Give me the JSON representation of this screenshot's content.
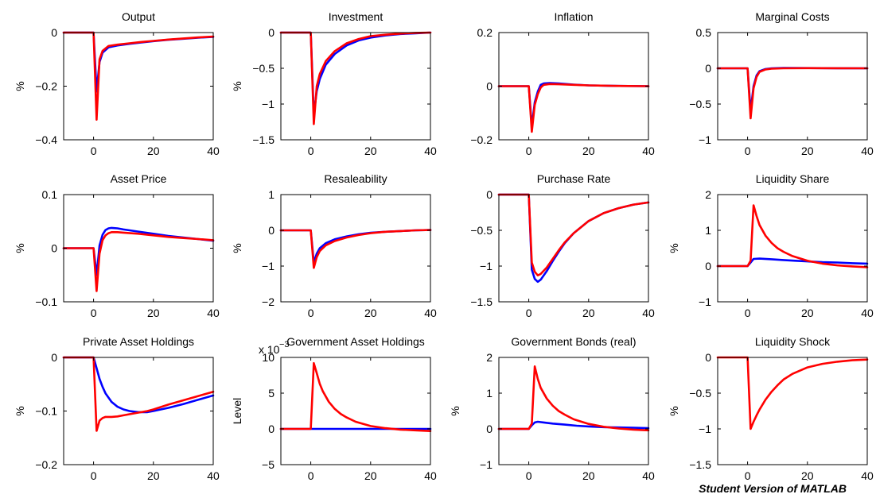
{
  "figure": {
    "watermark": "Student Version of MATLAB",
    "colors": {
      "series_blue": "#0000ff",
      "series_red": "#ff0000",
      "axes": "#000000",
      "background": "#ffffff"
    }
  },
  "chart_data": [
    {
      "type": "line",
      "title": "Output",
      "xlabel": "",
      "ylabel": "%",
      "xlim": [
        -10,
        40
      ],
      "ylim": [
        -0.4,
        0
      ],
      "xticks": [
        "0",
        "20",
        "40"
      ],
      "yticks": [
        "0",
        "−0.2",
        "−0.4"
      ],
      "ytick_values": [
        0,
        -0.2,
        -0.4
      ],
      "series": [
        {
          "color": "#0000ff",
          "x": [
            -10,
            0,
            1,
            2,
            3,
            5,
            8,
            12,
            16,
            20,
            25,
            30,
            35,
            40
          ],
          "y": [
            0,
            0,
            -0.22,
            -0.11,
            -0.075,
            -0.055,
            -0.048,
            -0.042,
            -0.037,
            -0.032,
            -0.027,
            -0.023,
            -0.019,
            -0.016
          ]
        },
        {
          "color": "#ff0000",
          "x": [
            -10,
            0,
            1,
            2,
            3,
            5,
            8,
            12,
            16,
            20,
            25,
            30,
            35,
            40
          ],
          "y": [
            0,
            0,
            -0.325,
            -0.1,
            -0.068,
            -0.05,
            -0.045,
            -0.04,
            -0.035,
            -0.031,
            -0.026,
            -0.022,
            -0.018,
            -0.015
          ]
        }
      ]
    },
    {
      "type": "line",
      "title": "Investment",
      "xlabel": "",
      "ylabel": "%",
      "xlim": [
        -10,
        40
      ],
      "ylim": [
        -1.5,
        0
      ],
      "xticks": [
        "0",
        "20",
        "40"
      ],
      "yticks": [
        "0",
        "−0.5",
        "−1",
        "−1.5"
      ],
      "ytick_values": [
        0,
        -0.5,
        -1,
        -1.5
      ],
      "series": [
        {
          "color": "#0000ff",
          "x": [
            -10,
            0,
            1,
            2,
            3,
            5,
            8,
            12,
            16,
            20,
            25,
            30,
            35,
            40
          ],
          "y": [
            0,
            0,
            -1.15,
            -0.82,
            -0.65,
            -0.45,
            -0.3,
            -0.18,
            -0.11,
            -0.07,
            -0.04,
            -0.02,
            -0.01,
            0
          ]
        },
        {
          "color": "#ff0000",
          "x": [
            -10,
            0,
            1,
            2,
            3,
            5,
            8,
            12,
            16,
            20,
            25,
            30,
            35,
            40
          ],
          "y": [
            0,
            0,
            -1.28,
            -0.75,
            -0.58,
            -0.4,
            -0.26,
            -0.15,
            -0.09,
            -0.05,
            -0.03,
            -0.015,
            -0.005,
            0
          ]
        }
      ]
    },
    {
      "type": "line",
      "title": "Inflation",
      "xlabel": "",
      "ylabel": "",
      "xlim": [
        -10,
        40
      ],
      "ylim": [
        -0.2,
        0.2
      ],
      "xticks": [
        "0",
        "20",
        "40"
      ],
      "yticks": [
        "0.2",
        "0",
        "−0.2"
      ],
      "ytick_values": [
        0.2,
        0,
        -0.2
      ],
      "series": [
        {
          "color": "#0000ff",
          "x": [
            -10,
            0,
            1,
            2,
            3,
            4,
            5,
            7,
            10,
            15,
            20,
            30,
            40
          ],
          "y": [
            0,
            0,
            -0.15,
            -0.06,
            -0.02,
            0.005,
            0.01,
            0.012,
            0.01,
            0.006,
            0.003,
            0.001,
            0
          ]
        },
        {
          "color": "#ff0000",
          "x": [
            -10,
            0,
            1,
            2,
            3,
            4,
            5,
            7,
            10,
            15,
            20,
            30,
            40
          ],
          "y": [
            0,
            0,
            -0.17,
            -0.07,
            -0.03,
            -0.005,
            0.005,
            0.008,
            0.007,
            0.005,
            0.003,
            0.001,
            0
          ]
        }
      ]
    },
    {
      "type": "line",
      "title": "Marginal Costs",
      "xlabel": "",
      "ylabel": "",
      "xlim": [
        -10,
        40
      ],
      "ylim": [
        -1,
        0.5
      ],
      "xticks": [
        "0",
        "20",
        "40"
      ],
      "yticks": [
        "0.5",
        "0",
        "−0.5",
        "−1"
      ],
      "ytick_values": [
        0.5,
        0,
        -0.5,
        -1
      ],
      "series": [
        {
          "color": "#0000ff",
          "x": [
            -10,
            0,
            1,
            2,
            3,
            4,
            6,
            8,
            12,
            20,
            30,
            40
          ],
          "y": [
            0,
            0,
            -0.6,
            -0.25,
            -0.1,
            -0.04,
            -0.01,
            0,
            0.005,
            0.003,
            0.001,
            0
          ]
        },
        {
          "color": "#ff0000",
          "x": [
            -10,
            0,
            1,
            2,
            3,
            4,
            6,
            8,
            12,
            20,
            30,
            40
          ],
          "y": [
            0,
            0,
            -0.7,
            -0.28,
            -0.12,
            -0.05,
            -0.015,
            -0.005,
            0,
            0.002,
            0.001,
            0
          ]
        }
      ]
    },
    {
      "type": "line",
      "title": "Asset Price",
      "xlabel": "",
      "ylabel": "%",
      "xlim": [
        -10,
        40
      ],
      "ylim": [
        -0.1,
        0.1
      ],
      "xticks": [
        "0",
        "20",
        "40"
      ],
      "yticks": [
        "0.1",
        "0",
        "−0.1"
      ],
      "ytick_values": [
        0.1,
        0,
        -0.1
      ],
      "series": [
        {
          "color": "#0000ff",
          "x": [
            -10,
            0,
            1,
            2,
            3,
            4,
            5,
            6,
            8,
            10,
            15,
            20,
            25,
            30,
            35,
            40
          ],
          "y": [
            0,
            0,
            -0.05,
            0.005,
            0.025,
            0.034,
            0.037,
            0.038,
            0.037,
            0.035,
            0.031,
            0.027,
            0.023,
            0.02,
            0.017,
            0.014
          ]
        },
        {
          "color": "#ff0000",
          "x": [
            -10,
            0,
            1,
            2,
            3,
            4,
            5,
            6,
            8,
            10,
            15,
            20,
            25,
            30,
            35,
            40
          ],
          "y": [
            0,
            0,
            -0.08,
            -0.01,
            0.015,
            0.024,
            0.028,
            0.03,
            0.03,
            0.029,
            0.027,
            0.024,
            0.021,
            0.019,
            0.017,
            0.015
          ]
        }
      ]
    },
    {
      "type": "line",
      "title": "Resaleability",
      "xlabel": "",
      "ylabel": "%",
      "xlim": [
        -10,
        40
      ],
      "ylim": [
        -2,
        1
      ],
      "xticks": [
        "0",
        "20",
        "40"
      ],
      "yticks": [
        "1",
        "0",
        "−1",
        "−2"
      ],
      "ytick_values": [
        1,
        0,
        -1,
        -2
      ],
      "series": [
        {
          "color": "#0000ff",
          "x": [
            -10,
            0,
            1,
            2,
            3,
            5,
            8,
            12,
            16,
            20,
            25,
            30,
            35,
            40
          ],
          "y": [
            0,
            0,
            -0.9,
            -0.65,
            -0.5,
            -0.36,
            -0.25,
            -0.17,
            -0.11,
            -0.07,
            -0.04,
            -0.02,
            0,
            0.01
          ]
        },
        {
          "color": "#ff0000",
          "x": [
            -10,
            0,
            1,
            2,
            3,
            5,
            8,
            12,
            16,
            20,
            25,
            30,
            35,
            40
          ],
          "y": [
            0,
            0,
            -1.05,
            -0.75,
            -0.58,
            -0.42,
            -0.3,
            -0.2,
            -0.13,
            -0.08,
            -0.04,
            -0.02,
            0,
            0.01
          ]
        }
      ]
    },
    {
      "type": "line",
      "title": "Purchase Rate",
      "xlabel": "",
      "ylabel": "",
      "xlim": [
        -10,
        40
      ],
      "ylim": [
        -1.5,
        0
      ],
      "xticks": [
        "0",
        "20",
        "40"
      ],
      "yticks": [
        "0",
        "−0.5",
        "−1",
        "−1.5"
      ],
      "ytick_values": [
        0,
        -0.5,
        -1,
        -1.5
      ],
      "series": [
        {
          "color": "#0000ff",
          "x": [
            -10,
            0,
            1,
            2,
            3,
            4,
            6,
            8,
            10,
            12,
            15,
            20,
            25,
            30,
            35,
            40
          ],
          "y": [
            0,
            0,
            -1.05,
            -1.18,
            -1.22,
            -1.19,
            -1.07,
            -0.93,
            -0.8,
            -0.68,
            -0.54,
            -0.37,
            -0.26,
            -0.19,
            -0.14,
            -0.11
          ]
        },
        {
          "color": "#ff0000",
          "x": [
            -10,
            0,
            1,
            2,
            3,
            4,
            6,
            8,
            10,
            12,
            15,
            20,
            25,
            30,
            35,
            40
          ],
          "y": [
            0,
            0,
            -0.95,
            -1.08,
            -1.13,
            -1.11,
            -1.02,
            -0.9,
            -0.78,
            -0.67,
            -0.54,
            -0.37,
            -0.26,
            -0.19,
            -0.14,
            -0.11
          ]
        }
      ]
    },
    {
      "type": "line",
      "title": "Liquidity Share",
      "xlabel": "",
      "ylabel": "%",
      "xlim": [
        -10,
        40
      ],
      "ylim": [
        -1,
        2
      ],
      "xticks": [
        "0",
        "20",
        "40"
      ],
      "yticks": [
        "2",
        "1",
        "0",
        "−1"
      ],
      "ytick_values": [
        2,
        1,
        0,
        -1
      ],
      "series": [
        {
          "color": "#0000ff",
          "x": [
            -10,
            0,
            1,
            2,
            4,
            8,
            12,
            16,
            20,
            25,
            30,
            35,
            40
          ],
          "y": [
            0,
            0,
            0.1,
            0.2,
            0.21,
            0.19,
            0.17,
            0.15,
            0.13,
            0.11,
            0.1,
            0.08,
            0.07
          ]
        },
        {
          "color": "#ff0000",
          "x": [
            -10,
            0,
            1,
            2,
            3,
            4,
            6,
            8,
            10,
            12,
            15,
            20,
            25,
            30,
            35,
            40
          ],
          "y": [
            0,
            0,
            0.15,
            1.7,
            1.4,
            1.15,
            0.85,
            0.65,
            0.5,
            0.4,
            0.28,
            0.15,
            0.07,
            0.02,
            -0.01,
            -0.03
          ]
        }
      ]
    },
    {
      "type": "line",
      "title": "Private Asset Holdings",
      "xlabel": "",
      "ylabel": "%",
      "xlim": [
        -10,
        40
      ],
      "ylim": [
        -0.2,
        0
      ],
      "xticks": [
        "0",
        "20",
        "40"
      ],
      "yticks": [
        "0",
        "−0.1",
        "−0.2"
      ],
      "ytick_values": [
        0,
        -0.1,
        -0.2
      ],
      "series": [
        {
          "color": "#0000ff",
          "x": [
            -10,
            0,
            1,
            2,
            3,
            4,
            6,
            8,
            10,
            12,
            15,
            18,
            20,
            25,
            30,
            35,
            40
          ],
          "y": [
            0,
            0,
            -0.02,
            -0.04,
            -0.055,
            -0.067,
            -0.083,
            -0.092,
            -0.097,
            -0.1,
            -0.102,
            -0.102,
            -0.1,
            -0.094,
            -0.087,
            -0.079,
            -0.071
          ]
        },
        {
          "color": "#ff0000",
          "x": [
            -10,
            0,
            1,
            2,
            3,
            4,
            6,
            8,
            10,
            12,
            15,
            18,
            20,
            25,
            30,
            35,
            40
          ],
          "y": [
            0,
            0,
            -0.137,
            -0.118,
            -0.113,
            -0.111,
            -0.111,
            -0.11,
            -0.108,
            -0.106,
            -0.103,
            -0.1,
            -0.097,
            -0.088,
            -0.08,
            -0.072,
            -0.064
          ]
        }
      ]
    },
    {
      "type": "line",
      "title": "Government Asset Holdings",
      "xlabel": "",
      "ylabel": "Level",
      "exponent_label": "x 10",
      "exponent_power": "−3",
      "xlim": [
        -10,
        40
      ],
      "ylim": [
        -5,
        10
      ],
      "xticks": [
        "0",
        "20",
        "40"
      ],
      "yticks": [
        "10",
        "5",
        "0",
        "−5"
      ],
      "ytick_values": [
        10,
        5,
        0,
        -5
      ],
      "series": [
        {
          "color": "#0000ff",
          "x": [
            -10,
            40
          ],
          "y": [
            0,
            0
          ]
        },
        {
          "color": "#ff0000",
          "x": [
            -10,
            0,
            1,
            2,
            3,
            4,
            6,
            8,
            10,
            12,
            15,
            20,
            25,
            30,
            35,
            40
          ],
          "y": [
            0,
            0,
            9.2,
            7.8,
            6.3,
            5.3,
            3.8,
            2.8,
            2.1,
            1.6,
            1.0,
            0.4,
            0.1,
            -0.1,
            -0.2,
            -0.3
          ]
        }
      ]
    },
    {
      "type": "line",
      "title": "Government Bonds (real)",
      "xlabel": "",
      "ylabel": "%",
      "xlim": [
        -10,
        40
      ],
      "ylim": [
        -1,
        2
      ],
      "xticks": [
        "0",
        "20",
        "40"
      ],
      "yticks": [
        "2",
        "1",
        "0",
        "−1"
      ],
      "ytick_values": [
        2,
        1,
        0,
        -1
      ],
      "series": [
        {
          "color": "#0000ff",
          "x": [
            -10,
            0,
            1,
            2,
            3,
            5,
            8,
            12,
            16,
            20,
            25,
            30,
            35,
            40
          ],
          "y": [
            0,
            0,
            0.1,
            0.18,
            0.2,
            0.18,
            0.15,
            0.12,
            0.09,
            0.07,
            0.05,
            0.04,
            0.03,
            0.02
          ]
        },
        {
          "color": "#ff0000",
          "x": [
            -10,
            0,
            1,
            2,
            3,
            4,
            6,
            8,
            10,
            12,
            15,
            20,
            25,
            30,
            35,
            40
          ],
          "y": [
            0,
            0,
            0.15,
            1.75,
            1.4,
            1.15,
            0.85,
            0.65,
            0.5,
            0.4,
            0.27,
            0.14,
            0.06,
            0.01,
            -0.02,
            -0.04
          ]
        }
      ]
    },
    {
      "type": "line",
      "title": "Liquidity Shock",
      "xlabel": "",
      "ylabel": "%",
      "xlim": [
        -10,
        40
      ],
      "ylim": [
        -1.5,
        0
      ],
      "xticks": [
        "0",
        "20",
        "40"
      ],
      "yticks": [
        "0",
        "−0.5",
        "−1",
        "−1.5"
      ],
      "ytick_values": [
        0,
        -0.5,
        -1,
        -1.5
      ],
      "series": [
        {
          "color": "#ff0000",
          "x": [
            -10,
            0,
            1,
            2,
            3,
            4,
            6,
            8,
            10,
            12,
            15,
            20,
            25,
            30,
            35,
            40
          ],
          "y": [
            0,
            0,
            -1.0,
            -0.9,
            -0.81,
            -0.73,
            -0.59,
            -0.48,
            -0.39,
            -0.31,
            -0.23,
            -0.14,
            -0.09,
            -0.06,
            -0.04,
            -0.03
          ]
        }
      ]
    }
  ]
}
